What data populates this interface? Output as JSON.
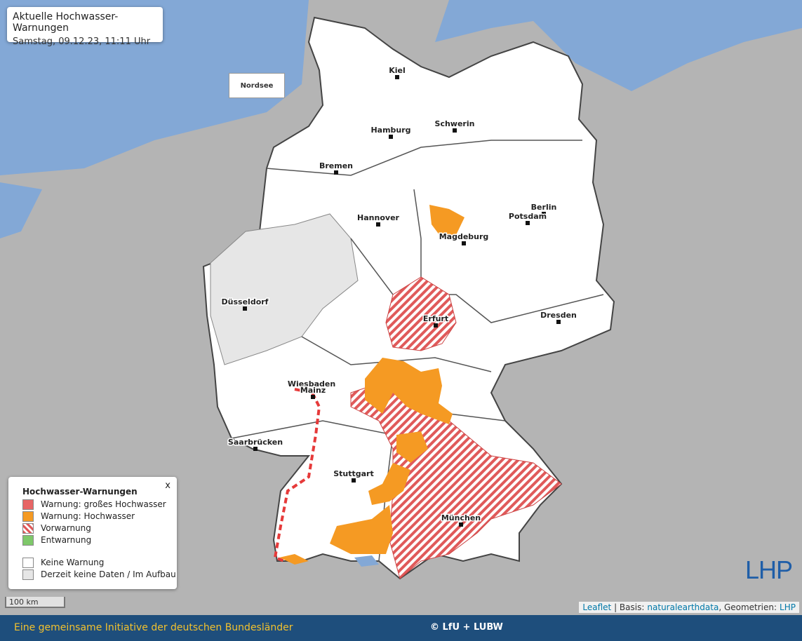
{
  "header": {
    "title": "Aktuelle Hochwasser-Warnungen",
    "subtitle": "Samstag, 09.12.23, 11:11 Uhr"
  },
  "map": {
    "sea_label": "Nordsee",
    "cities": [
      "Kiel",
      "Hamburg",
      "Schwerin",
      "Bremen",
      "Hannover",
      "Berlin",
      "Potsdam",
      "Magdeburg",
      "Düsseldorf",
      "Erfurt",
      "Dresden",
      "Wiesbaden",
      "Mainz",
      "Saarbrücken",
      "Stuttgart",
      "München"
    ],
    "scale": "100 km"
  },
  "legend": {
    "title": "Hochwasser-Warnungen",
    "close": "x",
    "items": [
      "Warnung: großes Hochwasser",
      "Warnung: Hochwasser",
      "Vorwarnung",
      "Entwarnung",
      "Keine Warnung",
      "Derzeit keine Daten / Im Aufbau"
    ]
  },
  "attribution": {
    "leaflet": "Leaflet",
    "basis_prefix": "| Basis:",
    "basis_link": "naturalearthdata",
    "geometry_prefix": ", Geometrien:",
    "geometry_link": "LHP"
  },
  "footer": {
    "initiative": "Eine gemeinsame Initiative der deutschen Bundesländer",
    "copyright": "© LfU + LUBW"
  },
  "logo": "LHP"
}
